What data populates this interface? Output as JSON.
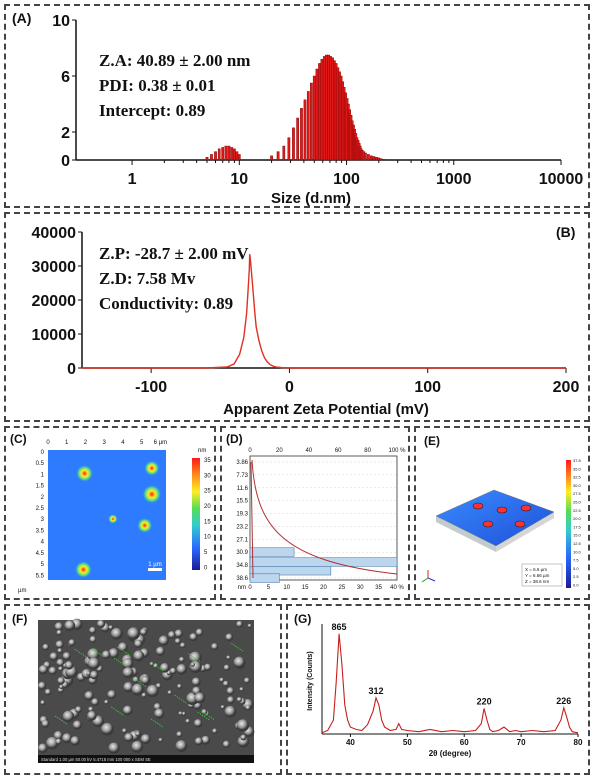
{
  "panels": {
    "A": {
      "label": "(A)",
      "stats": [
        "Z.A: 40.89  ± 2.00 nm",
        "PDI: 0.38  ±  0.01",
        "Intercept: 0.89"
      ],
      "xlabel": "Size (d.nm)",
      "xticks": [
        "1",
        "10",
        "100",
        "1000",
        "10000"
      ],
      "yticks": [
        "10",
        "6",
        "2",
        "0"
      ]
    },
    "B": {
      "label": "(B)",
      "stats": [
        "Z.P: -28.7 ± 2.00 mV",
        "Z.D: 7.58 Mv",
        "Conductivity: 0.89"
      ],
      "xlabel": "Apparent Zeta Potential (mV)",
      "xticks": [
        "-100",
        "0",
        "100",
        "200"
      ],
      "yticks": [
        "40000",
        "30000",
        "20000",
        "10000",
        "0"
      ]
    },
    "C": {
      "label": "(C)",
      "xticks": [
        "0",
        "1",
        "2",
        "3",
        "4",
        "5",
        "6 µm"
      ],
      "yticks": [
        "0",
        "0.5",
        "1",
        "1.5",
        "2",
        "2.5",
        "3",
        "3.5",
        "4",
        "4.5",
        "5",
        "5.5"
      ],
      "unit": "µm",
      "cbar_unit": "nm",
      "cbar_ticks": [
        "35",
        "30",
        "25",
        "20",
        "15",
        "10",
        "5",
        "0"
      ],
      "scale": "1 µm"
    },
    "D": {
      "label": "(D)",
      "top_ticks": [
        "0",
        "20",
        "40",
        "60",
        "80",
        "100 %"
      ],
      "bottom_ticks": [
        "0",
        "5",
        "10",
        "15",
        "20",
        "25",
        "30",
        "35",
        "40 %"
      ],
      "yticks": [
        "3.86",
        "7.73",
        "11.6",
        "15.5",
        "19.3",
        "23.2",
        "27.1",
        "30.9",
        "34.8",
        "38.6"
      ],
      "unit": "nm"
    },
    "E": {
      "label": "(E)",
      "legend": [
        "X = 6.6 µm",
        "Y = 6.66 µm",
        "Z = 38.6 nm"
      ],
      "cbar_ticks": [
        "37.8",
        "35.0",
        "32.5",
        "30.0",
        "27.5",
        "25.0",
        "22.5",
        "20.0",
        "17.5",
        "15.0",
        "12.5",
        "10.0",
        "7.5",
        "5.0",
        "2.5",
        "0.0"
      ]
    },
    "F": {
      "label": "(F)",
      "footer": "Standard  1.00 µm  50.00 kV  5.4718 mm  100 000 x  SEM  SE"
    },
    "G": {
      "label": "(G)",
      "xlabel": "2θ (degree)",
      "ylabel": "Intensity (Counts)",
      "xticks": [
        "40",
        "50",
        "60",
        "70",
        "80"
      ],
      "peaks": [
        "865",
        "312",
        "220",
        "226"
      ]
    }
  },
  "chart_data": [
    {
      "type": "bar",
      "title": "",
      "xlabel": "Size (d.nm)",
      "ylabel": "",
      "xscale": "log",
      "xlim": [
        0.3,
        10000
      ],
      "ylim": [
        0,
        10
      ],
      "x": [
        5,
        5.5,
        6,
        6.5,
        7,
        7.5,
        8,
        8.5,
        9,
        9.5,
        10,
        20,
        23,
        26,
        29,
        32,
        35,
        38,
        41,
        44,
        47,
        50,
        53,
        56,
        59,
        62,
        65,
        68,
        71,
        74,
        77,
        80,
        83,
        86,
        89,
        92,
        95,
        98,
        101,
        104,
        107,
        110,
        113,
        116,
        119,
        122,
        125,
        128,
        131,
        134,
        137,
        140,
        145,
        150,
        160,
        170,
        180,
        190,
        200,
        210,
        220
      ],
      "values": [
        0.2,
        0.4,
        0.6,
        0.8,
        0.9,
        1.0,
        1.0,
        0.9,
        0.8,
        0.6,
        0.4,
        0.3,
        0.6,
        1.0,
        1.6,
        2.3,
        3.0,
        3.7,
        4.3,
        4.9,
        5.5,
        6.0,
        6.5,
        6.9,
        7.2,
        7.4,
        7.5,
        7.5,
        7.4,
        7.3,
        7.1,
        6.9,
        6.6,
        6.3,
        6.0,
        5.6,
        5.2,
        4.8,
        4.4,
        4.0,
        3.6,
        3.2,
        2.8,
        2.5,
        2.2,
        1.9,
        1.6,
        1.4,
        1.2,
        1.0,
        0.8,
        0.7,
        0.6,
        0.5,
        0.4,
        0.3,
        0.25,
        0.2,
        0.15,
        0.1,
        0.05
      ]
    },
    {
      "type": "line",
      "title": "",
      "xlabel": "Apparent Zeta Potential (mV)",
      "ylabel": "",
      "xlim": [
        -150,
        200
      ],
      "ylim": [
        0,
        40000
      ],
      "x": [
        -150,
        -60,
        -45,
        -40,
        -36,
        -33,
        -31,
        -30,
        -29,
        -28.7,
        -28,
        -27,
        -26,
        -25,
        -24,
        -22,
        -20,
        -18,
        -16,
        -14,
        -12,
        -10,
        -5,
        0,
        200
      ],
      "y": [
        0,
        0,
        300,
        1200,
        4000,
        9000,
        16000,
        22000,
        29000,
        33500,
        31000,
        26000,
        21000,
        16000,
        12000,
        8000,
        5000,
        3000,
        1800,
        1000,
        600,
        300,
        100,
        0,
        0
      ]
    },
    {
      "type": "line",
      "title": "",
      "xlabel": "2θ (degree)",
      "ylabel": "Intensity (Counts)",
      "xlim": [
        35,
        80
      ],
      "ylim": [
        0,
        950
      ],
      "x": [
        35,
        36,
        37,
        37.5,
        38,
        38.5,
        39,
        39.5,
        40,
        41,
        42,
        43,
        44,
        44.5,
        45,
        45.5,
        46,
        47,
        48,
        48.5,
        49,
        50,
        52,
        54,
        56,
        58,
        60,
        62,
        63,
        63.5,
        64,
        64.5,
        65,
        66,
        67,
        68,
        69,
        70,
        72,
        74,
        76,
        77,
        77.5,
        78,
        78.5,
        79,
        80
      ],
      "y": [
        10,
        30,
        120,
        450,
        865,
        600,
        250,
        120,
        60,
        40,
        30,
        80,
        200,
        312,
        250,
        120,
        60,
        30,
        40,
        90,
        40,
        30,
        20,
        40,
        20,
        30,
        20,
        30,
        90,
        220,
        120,
        40,
        20,
        30,
        60,
        20,
        30,
        20,
        30,
        20,
        30,
        120,
        226,
        150,
        60,
        20,
        10
      ]
    }
  ]
}
